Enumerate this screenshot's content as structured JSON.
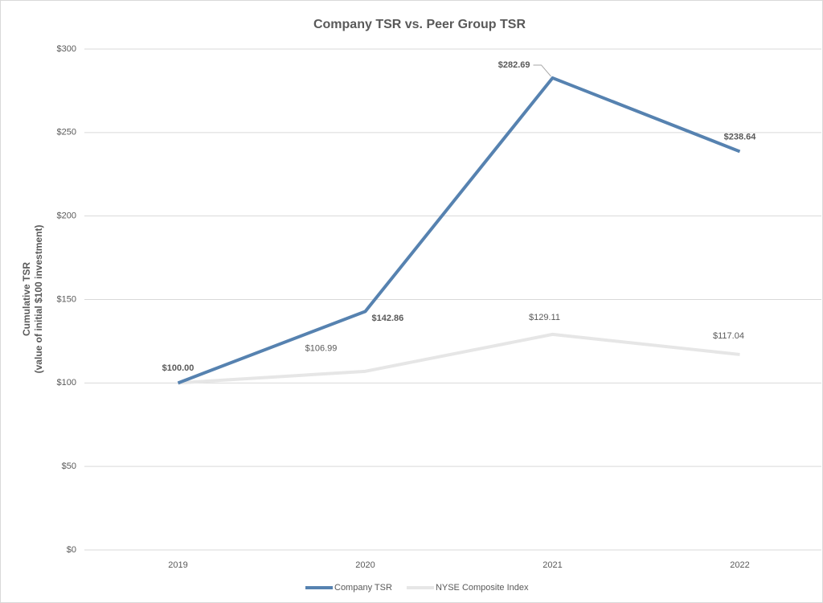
{
  "chart_data": {
    "type": "line",
    "title": "Company TSR vs. Peer Group TSR",
    "y_label": [
      "Cumulative TSR",
      "(value of initial $100 investment)"
    ],
    "categories": [
      "2019",
      "2020",
      "2021",
      "2022"
    ],
    "series": [
      {
        "name": "Company TSR",
        "color": "#5682b0",
        "values": [
          100.0,
          142.86,
          282.69,
          238.64
        ],
        "value_labels": [
          "$100.00",
          "$142.86",
          "$282.69",
          "$238.64"
        ]
      },
      {
        "name": "NYSE Composite Index",
        "color": "#e6e6e6",
        "values": [
          100.0,
          106.99,
          129.11,
          117.04
        ],
        "value_labels": [
          null,
          "$106.99",
          "$129.11",
          "$117.04"
        ]
      }
    ],
    "ylim": [
      0,
      300
    ],
    "yticks": [
      {
        "value": 0,
        "label": "$0"
      },
      {
        "value": 50,
        "label": "$50"
      },
      {
        "value": 100,
        "label": "$100"
      },
      {
        "value": 150,
        "label": "$150"
      },
      {
        "value": 200,
        "label": "$200"
      },
      {
        "value": 250,
        "label": "$250"
      },
      {
        "value": 300,
        "label": "$300"
      }
    ],
    "grid": true,
    "legend": "bottom"
  }
}
